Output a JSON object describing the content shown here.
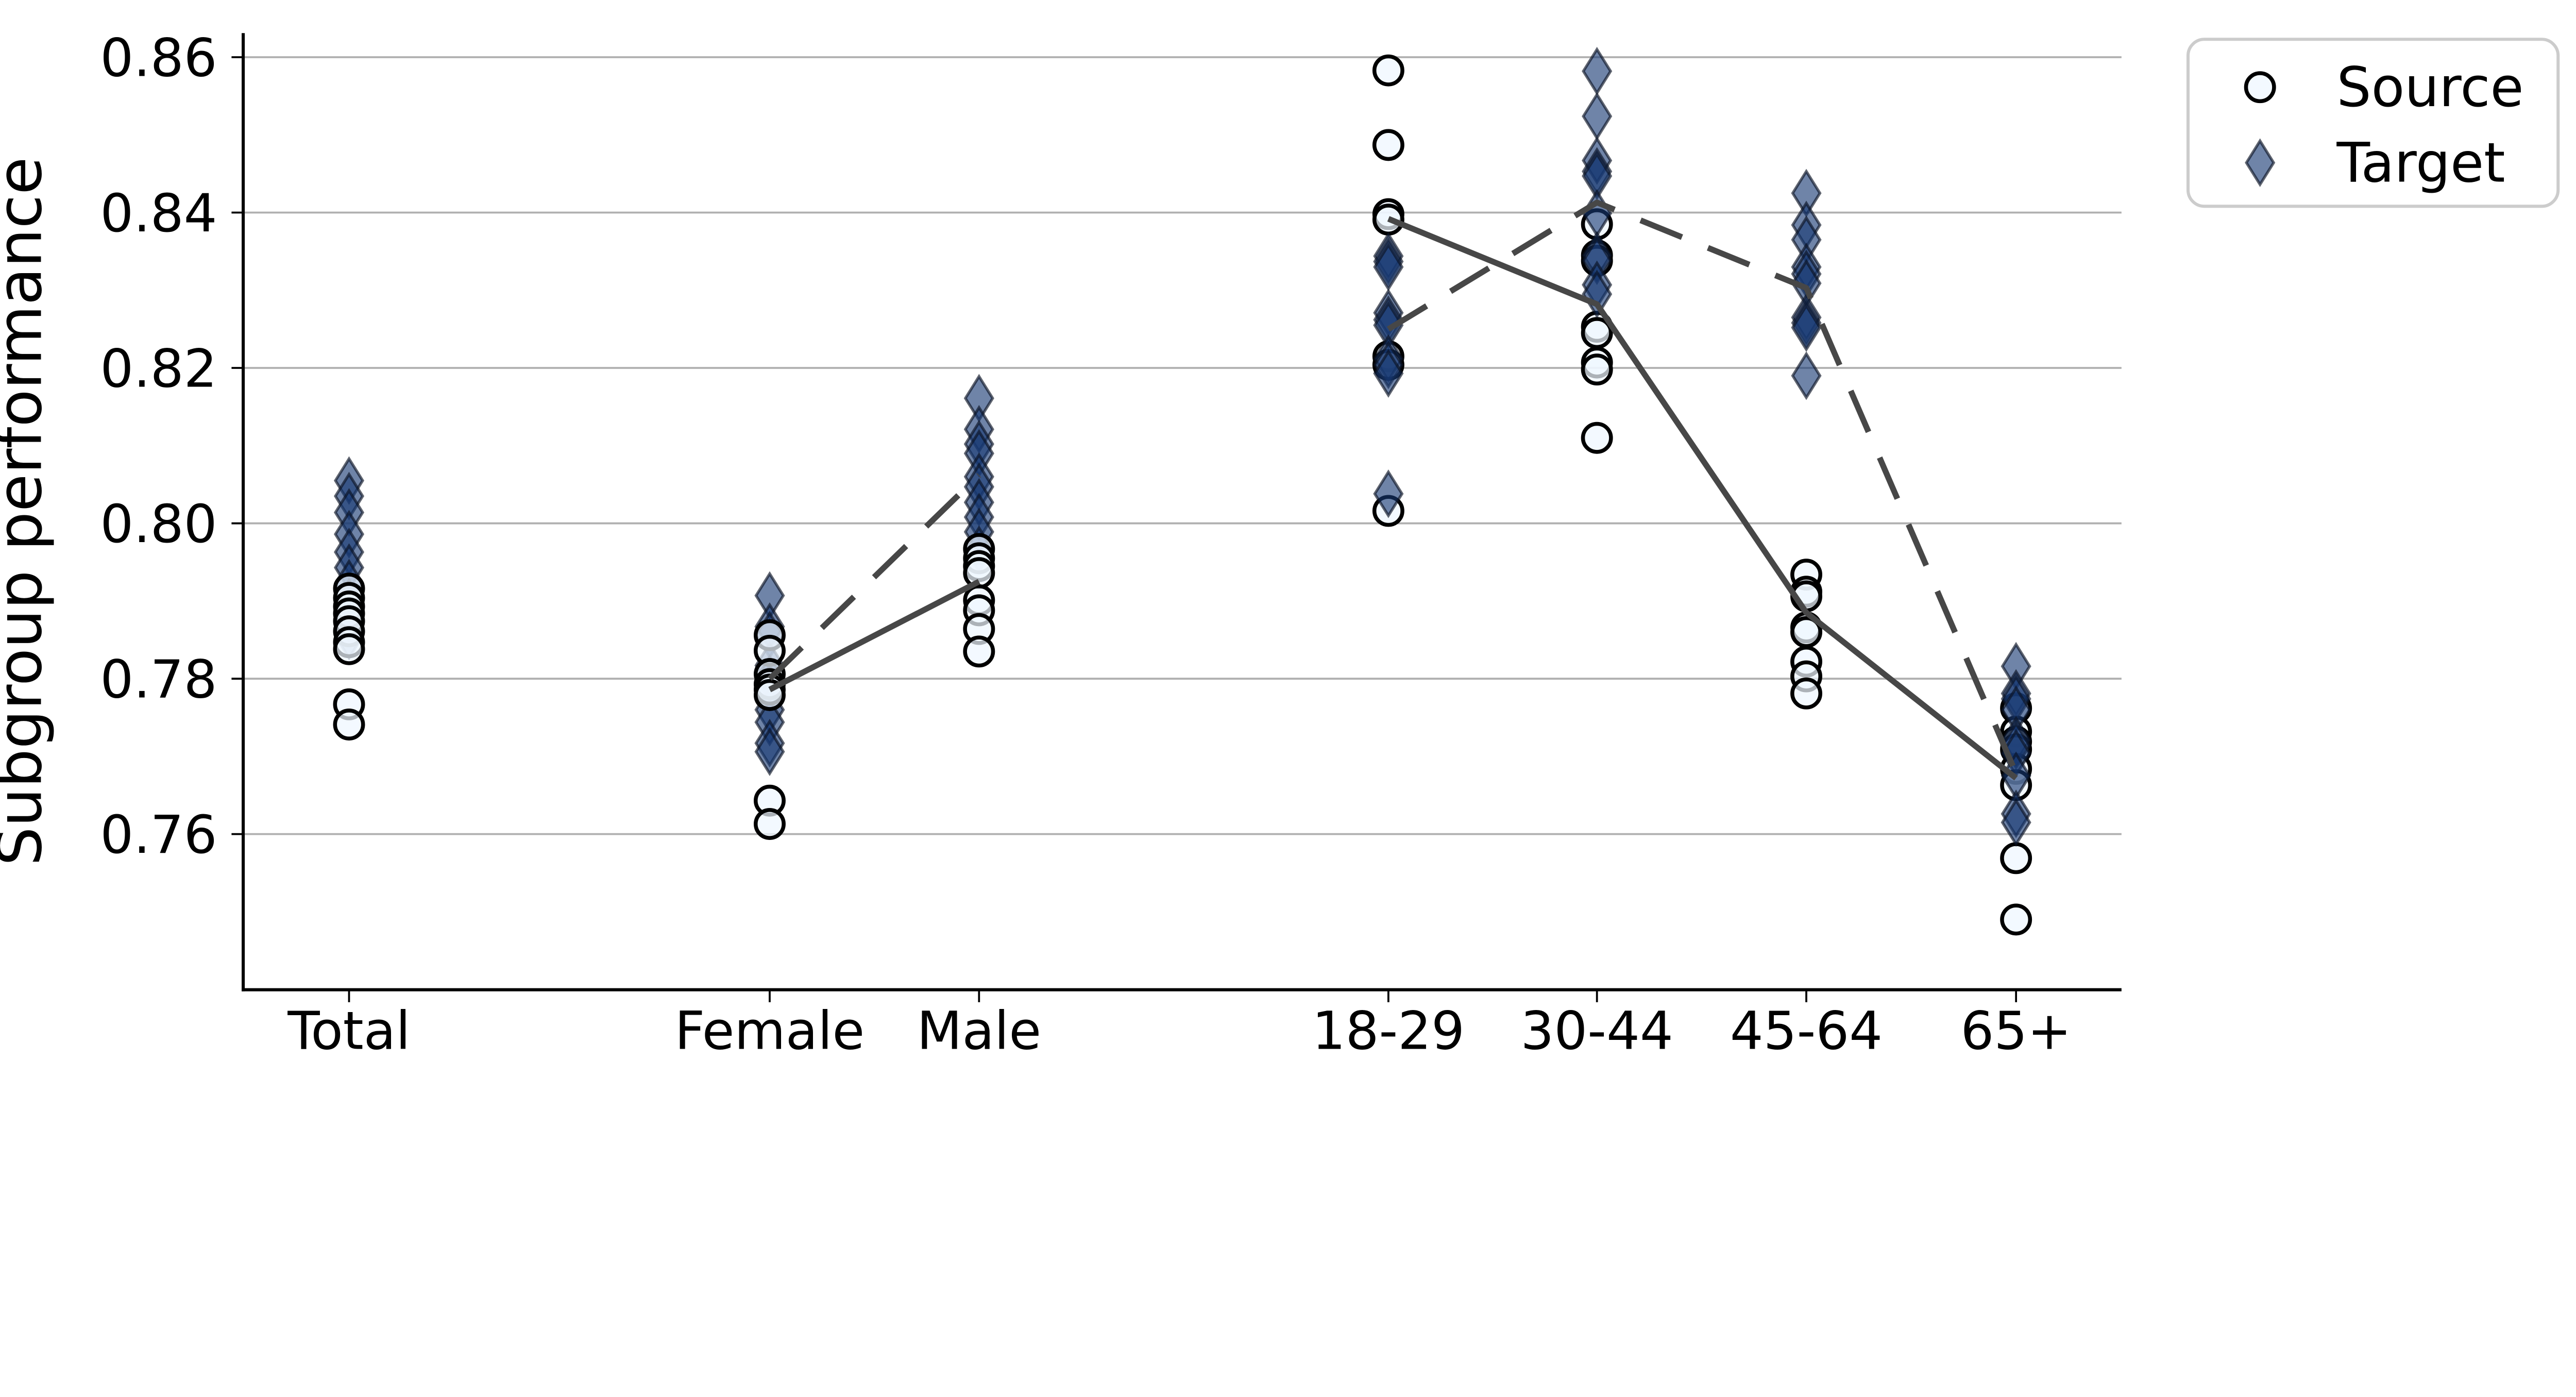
{
  "chart_data": {
    "type": "scatter",
    "title": "",
    "xlabel": "",
    "ylabel": "Subgroup performance",
    "ylim": [
      0.742,
      0.863
    ],
    "grid": true,
    "yticks": {
      "labels": [
        "0.86",
        "0.84",
        "0.82",
        "0.80",
        "0.78",
        "0.76"
      ],
      "values": [
        0.86,
        0.84,
        0.82,
        0.8,
        0.78,
        0.76
      ]
    },
    "categories": [
      {
        "label": "Total",
        "x": 897,
        "group": "total"
      },
      {
        "label": "Female",
        "x": 1978,
        "group": "gender"
      },
      {
        "label": "Male",
        "x": 2516,
        "group": "gender"
      },
      {
        "label": "18-29",
        "x": 3568,
        "group": "age"
      },
      {
        "label": "30-44",
        "x": 4104,
        "group": "age"
      },
      {
        "label": "45-64",
        "x": 4642,
        "group": "age"
      },
      {
        "label": "65+",
        "x": 5181,
        "group": "age"
      }
    ],
    "series": [
      {
        "name": "Source",
        "marker": "circle",
        "points": {
          "Total": [
            0.7916,
            0.7904,
            0.7893,
            0.7884,
            0.7874,
            0.7861,
            0.7847,
            0.7838,
            0.7767,
            0.7741
          ],
          "Female": [
            0.7856,
            0.7836,
            0.7806,
            0.7793,
            0.7786,
            0.7779,
            0.7643,
            0.7613
          ],
          "Male": [
            0.7967,
            0.7955,
            0.7945,
            0.7936,
            0.7901,
            0.7888,
            0.7864,
            0.7835
          ],
          "18-29": [
            0.8583,
            0.8487,
            0.8398,
            0.8391,
            0.8215,
            0.8204,
            0.8016
          ],
          "30-44": [
            0.8385,
            0.8345,
            0.8338,
            0.8253,
            0.8245,
            0.8207,
            0.8198,
            0.811
          ],
          "45-64": [
            0.7934,
            0.7912,
            0.7906,
            0.7866,
            0.786,
            0.7822,
            0.7803,
            0.7781
          ],
          "65+": [
            0.7762,
            0.7732,
            0.7719,
            0.7709,
            0.7684,
            0.7663,
            0.7569,
            0.749
          ]
        }
      },
      {
        "name": "Target",
        "marker": "thin-diamond",
        "points": {
          "Total": [
            0.8055,
            0.8035,
            0.8014,
            0.7986,
            0.7963,
            0.7943,
            0.7923,
            0.7899,
            0.7877,
            0.7855
          ],
          "Female": [
            0.7907,
            0.7867,
            0.7856,
            0.7817,
            0.78,
            0.7789,
            0.776,
            0.7744,
            0.7717,
            0.7706
          ],
          "Male": [
            0.8161,
            0.8121,
            0.8102,
            0.809,
            0.806,
            0.8047,
            0.8027,
            0.8008,
            0.7989,
            0.7966
          ],
          "18-29": [
            0.8344,
            0.8337,
            0.833,
            0.8271,
            0.8262,
            0.8255,
            0.8212,
            0.8204,
            0.8193,
            0.8038
          ],
          "30-44": [
            0.8582,
            0.8524,
            0.8467,
            0.8453,
            0.8447,
            0.8399,
            0.8345,
            0.8338,
            0.8307,
            0.8295
          ],
          "45-64": [
            0.8425,
            0.8384,
            0.8365,
            0.833,
            0.8321,
            0.8309,
            0.8265,
            0.8258,
            0.8252,
            0.819
          ],
          "65+": [
            0.7816,
            0.7781,
            0.7774,
            0.776,
            0.7721,
            0.7714,
            0.7704,
            0.7675,
            0.7626,
            0.7615
          ]
        }
      }
    ],
    "mean_lines": [
      {
        "series": "Source",
        "style": "solid",
        "points": [
          [
            "Female",
            0.7786
          ],
          [
            "Male",
            0.7925
          ]
        ]
      },
      {
        "series": "Source",
        "style": "solid",
        "points": [
          [
            "18-29",
            0.8392
          ],
          [
            "30-44",
            0.8282
          ],
          [
            "45-64",
            0.7885
          ],
          [
            "65+",
            0.7672
          ]
        ]
      },
      {
        "series": "Target",
        "style": "dashed",
        "points": [
          [
            "Female",
            0.78
          ],
          [
            "Male",
            0.8062
          ]
        ]
      },
      {
        "series": "Target",
        "style": "dashed",
        "points": [
          [
            "18-29",
            0.825
          ],
          [
            "30-44",
            0.8413
          ],
          [
            "45-64",
            0.8303
          ],
          [
            "65+",
            0.7678
          ]
        ]
      }
    ],
    "legend": {
      "position": "upper-right",
      "items": [
        {
          "label": "Source",
          "marker": "circle"
        },
        {
          "label": "Target",
          "marker": "thin-diamond"
        }
      ]
    },
    "colors": {
      "source_fill": "rgba(238,246,255,0.72)",
      "source_edge": "#000000",
      "target_fill": "rgba(23,57,115,0.62)",
      "target_edge": "rgba(10,18,35,0.65)",
      "mean_line": "#474747",
      "grid": "#b0b0b0",
      "spine": "#000000",
      "legend_border": "#cccccc",
      "background": "#ffffff"
    }
  }
}
